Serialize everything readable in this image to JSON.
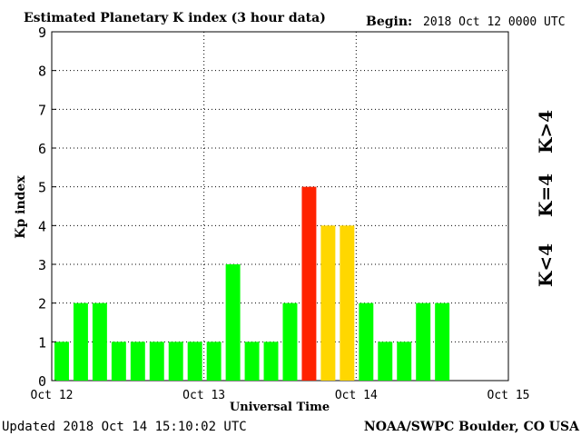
{
  "header": {
    "title": "Estimated Planetary K index (3 hour data)",
    "begin_label": "Begin:",
    "begin_value": "2018 Oct 12 0000 UTC"
  },
  "footer": {
    "updated": "Updated 2018 Oct 14 15:10:02 UTC",
    "source": "NOAA/SWPC Boulder, CO USA"
  },
  "legend": {
    "low": {
      "label": "K<4",
      "color": "#00ff00"
    },
    "mid": {
      "label": "K=4",
      "color": "#ffd700"
    },
    "high": {
      "label": "K>4",
      "color": "#ff2200"
    }
  },
  "chart_data": {
    "type": "bar",
    "title": "Estimated Planetary K index (3 hour data)",
    "xlabel": "Universal Time",
    "ylabel": "Kp index",
    "ylim": [
      0,
      9
    ],
    "yticks": [
      0,
      1,
      2,
      3,
      4,
      5,
      6,
      7,
      8,
      9
    ],
    "x_tick_labels": [
      "Oct 12",
      "Oct 13",
      "Oct 14",
      "Oct 15"
    ],
    "slots_per_day": 8,
    "grid": true,
    "values": [
      1,
      2,
      2,
      1,
      1,
      1,
      1,
      1,
      1,
      3,
      1,
      1,
      2,
      5,
      4,
      4,
      2,
      1,
      1,
      2,
      2
    ],
    "colors": {
      "low": "#00ff00",
      "mid": "#ffd700",
      "high": "#ff2200"
    }
  }
}
